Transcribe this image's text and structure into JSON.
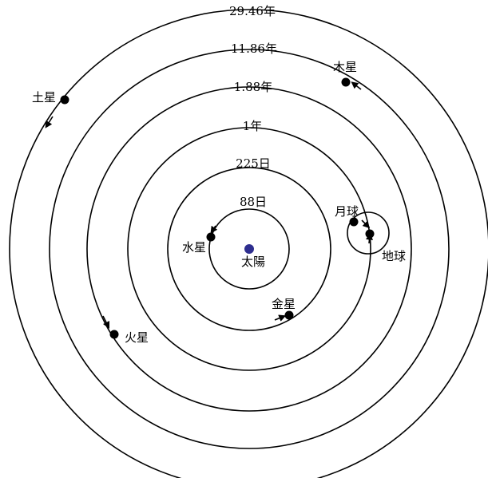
{
  "diagram": {
    "center_label": "太陽",
    "sun_color": "#2e2e8f",
    "line_color": "#000000",
    "orbits": [
      {
        "period": "88日",
        "planet": "水星"
      },
      {
        "period": "225日",
        "planet": "金星"
      },
      {
        "period": "1年",
        "planet": "地球"
      },
      {
        "period": "1.88年",
        "planet": "火星"
      },
      {
        "period": "11.86年",
        "planet": "木星"
      },
      {
        "period": "29.46年",
        "planet": "土星"
      }
    ],
    "moon": {
      "label": "月球"
    }
  }
}
